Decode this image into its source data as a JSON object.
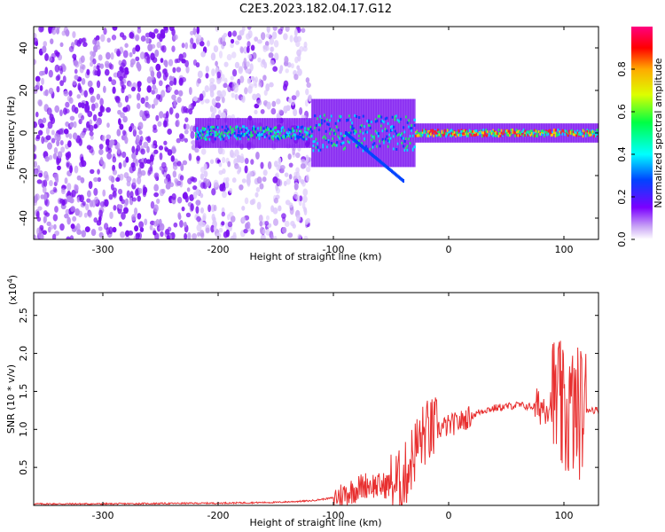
{
  "title": "C2E3.2023.182.04.17.G12",
  "colors": {
    "snr_line": "#e83030",
    "axis": "#000000"
  },
  "chart_data": [
    {
      "type": "heatmap",
      "xlabel": "Height of straight line (km)",
      "ylabel": "Frequency (Hz)",
      "xlim": [
        -360,
        130
      ],
      "ylim": [
        -50,
        50
      ],
      "x_ticks": [
        -300,
        -200,
        -100,
        0,
        100
      ],
      "y_ticks": [
        -40,
        -20,
        0,
        20,
        40
      ],
      "x_tick_labels": [
        "-300",
        "-200",
        "-100",
        "0",
        "100"
      ],
      "y_tick_labels": [
        "-40",
        "-20",
        "0",
        "20",
        "40"
      ],
      "colorbar": {
        "label": "Normalized spectral amplitude",
        "range": [
          0.0,
          1.0
        ],
        "ticks": [
          0.0,
          0.2,
          0.4,
          0.6,
          0.8
        ],
        "tick_labels": [
          "0.0",
          "0.2",
          "0.4",
          "0.6",
          "0.8"
        ]
      }
    },
    {
      "type": "line",
      "xlabel": "Height of straight line (km)",
      "ylabel": "SNR (10 * v/v)",
      "y_multiplier": "(x10",
      "y_multiplier_exp": "4",
      "y_multiplier_close": ")",
      "xlim": [
        -360,
        130
      ],
      "ylim": [
        0,
        2.8
      ],
      "x_ticks": [
        -300,
        -200,
        -100,
        0,
        100
      ],
      "y_ticks": [
        0.5,
        1.0,
        1.5,
        2.0,
        2.5
      ],
      "x_tick_labels": [
        "-300",
        "-200",
        "-100",
        "0",
        "100"
      ],
      "y_tick_labels": [
        "0.5",
        "1.0",
        "1.5",
        "2.0",
        "2.5"
      ],
      "series": [
        {
          "x": [
            -360,
            -300,
            -200,
            -150,
            -120,
            -100,
            -90,
            -80,
            -70,
            -60,
            -50,
            -40,
            -35,
            -30,
            -25,
            -20,
            -10,
            0,
            10,
            20,
            30,
            40,
            50,
            60,
            70,
            80,
            90,
            95,
            100,
            105,
            110,
            115,
            120,
            130
          ],
          "y": [
            0.02,
            0.02,
            0.03,
            0.04,
            0.06,
            0.1,
            0.15,
            0.22,
            0.28,
            0.25,
            0.28,
            0.3,
            0.5,
            0.7,
            0.85,
            0.95,
            1.0,
            1.05,
            1.1,
            1.18,
            1.25,
            1.28,
            1.3,
            1.32,
            1.3,
            1.3,
            1.35,
            1.4,
            1.1,
            1.25,
            1.2,
            1.25,
            1.27,
            1.25
          ]
        }
      ]
    }
  ]
}
